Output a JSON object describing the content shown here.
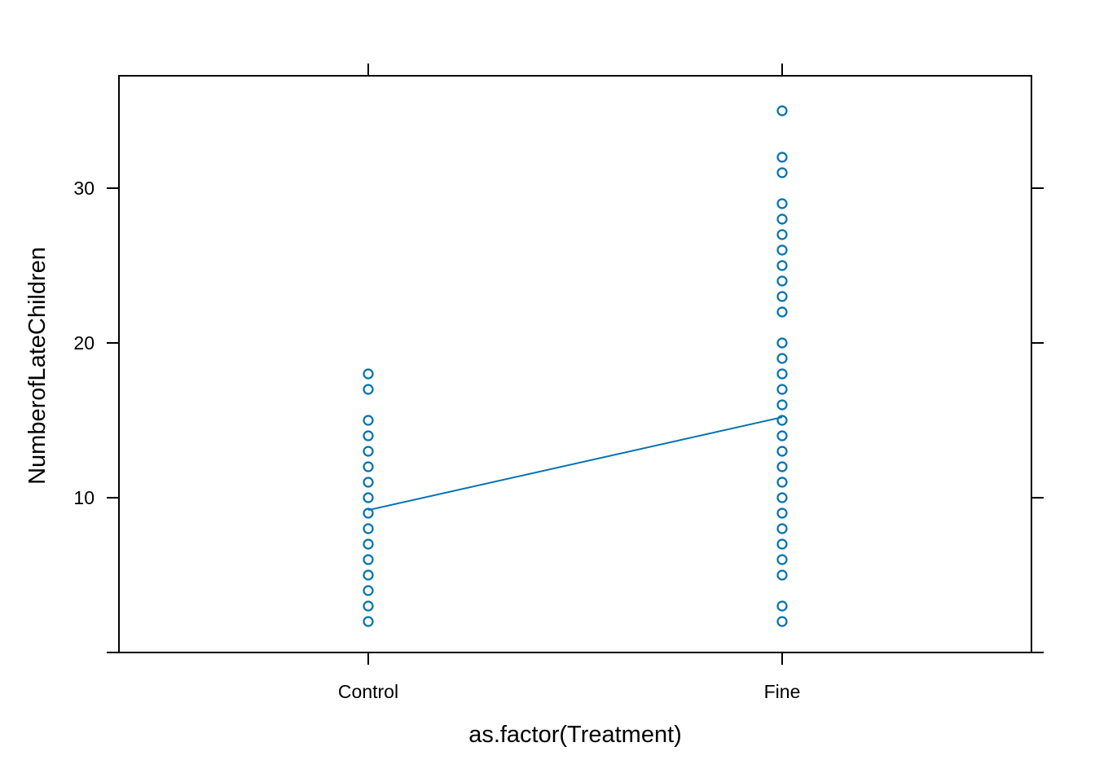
{
  "chart_data": {
    "type": "scatter",
    "title": "",
    "xlabel": "as.factor(Treatment)",
    "ylabel": "NumberofLateChildren",
    "categories": [
      "Control",
      "Fine"
    ],
    "ylim": [
      0,
      37.3
    ],
    "yticks": [
      0,
      10,
      20,
      30
    ],
    "ytick_labels": [
      "",
      "10",
      "20",
      "30"
    ],
    "grid": false,
    "legend": "none",
    "colors": {
      "series": "#0072B2",
      "axis": "#000000"
    },
    "series": [
      {
        "category": "Control",
        "values": [
          2,
          3,
          4,
          5,
          6,
          7,
          8,
          9,
          10,
          11,
          12,
          13,
          14,
          15,
          17,
          18
        ]
      },
      {
        "category": "Fine",
        "values": [
          2,
          3,
          5,
          6,
          7,
          8,
          9,
          10,
          11,
          12,
          13,
          14,
          15,
          16,
          17,
          18,
          19,
          20,
          22,
          23,
          24,
          25,
          26,
          27,
          28,
          29,
          31,
          32,
          35
        ]
      }
    ],
    "mean_line": {
      "x": [
        "Control",
        "Fine"
      ],
      "y": [
        9.2,
        15.2
      ]
    }
  }
}
